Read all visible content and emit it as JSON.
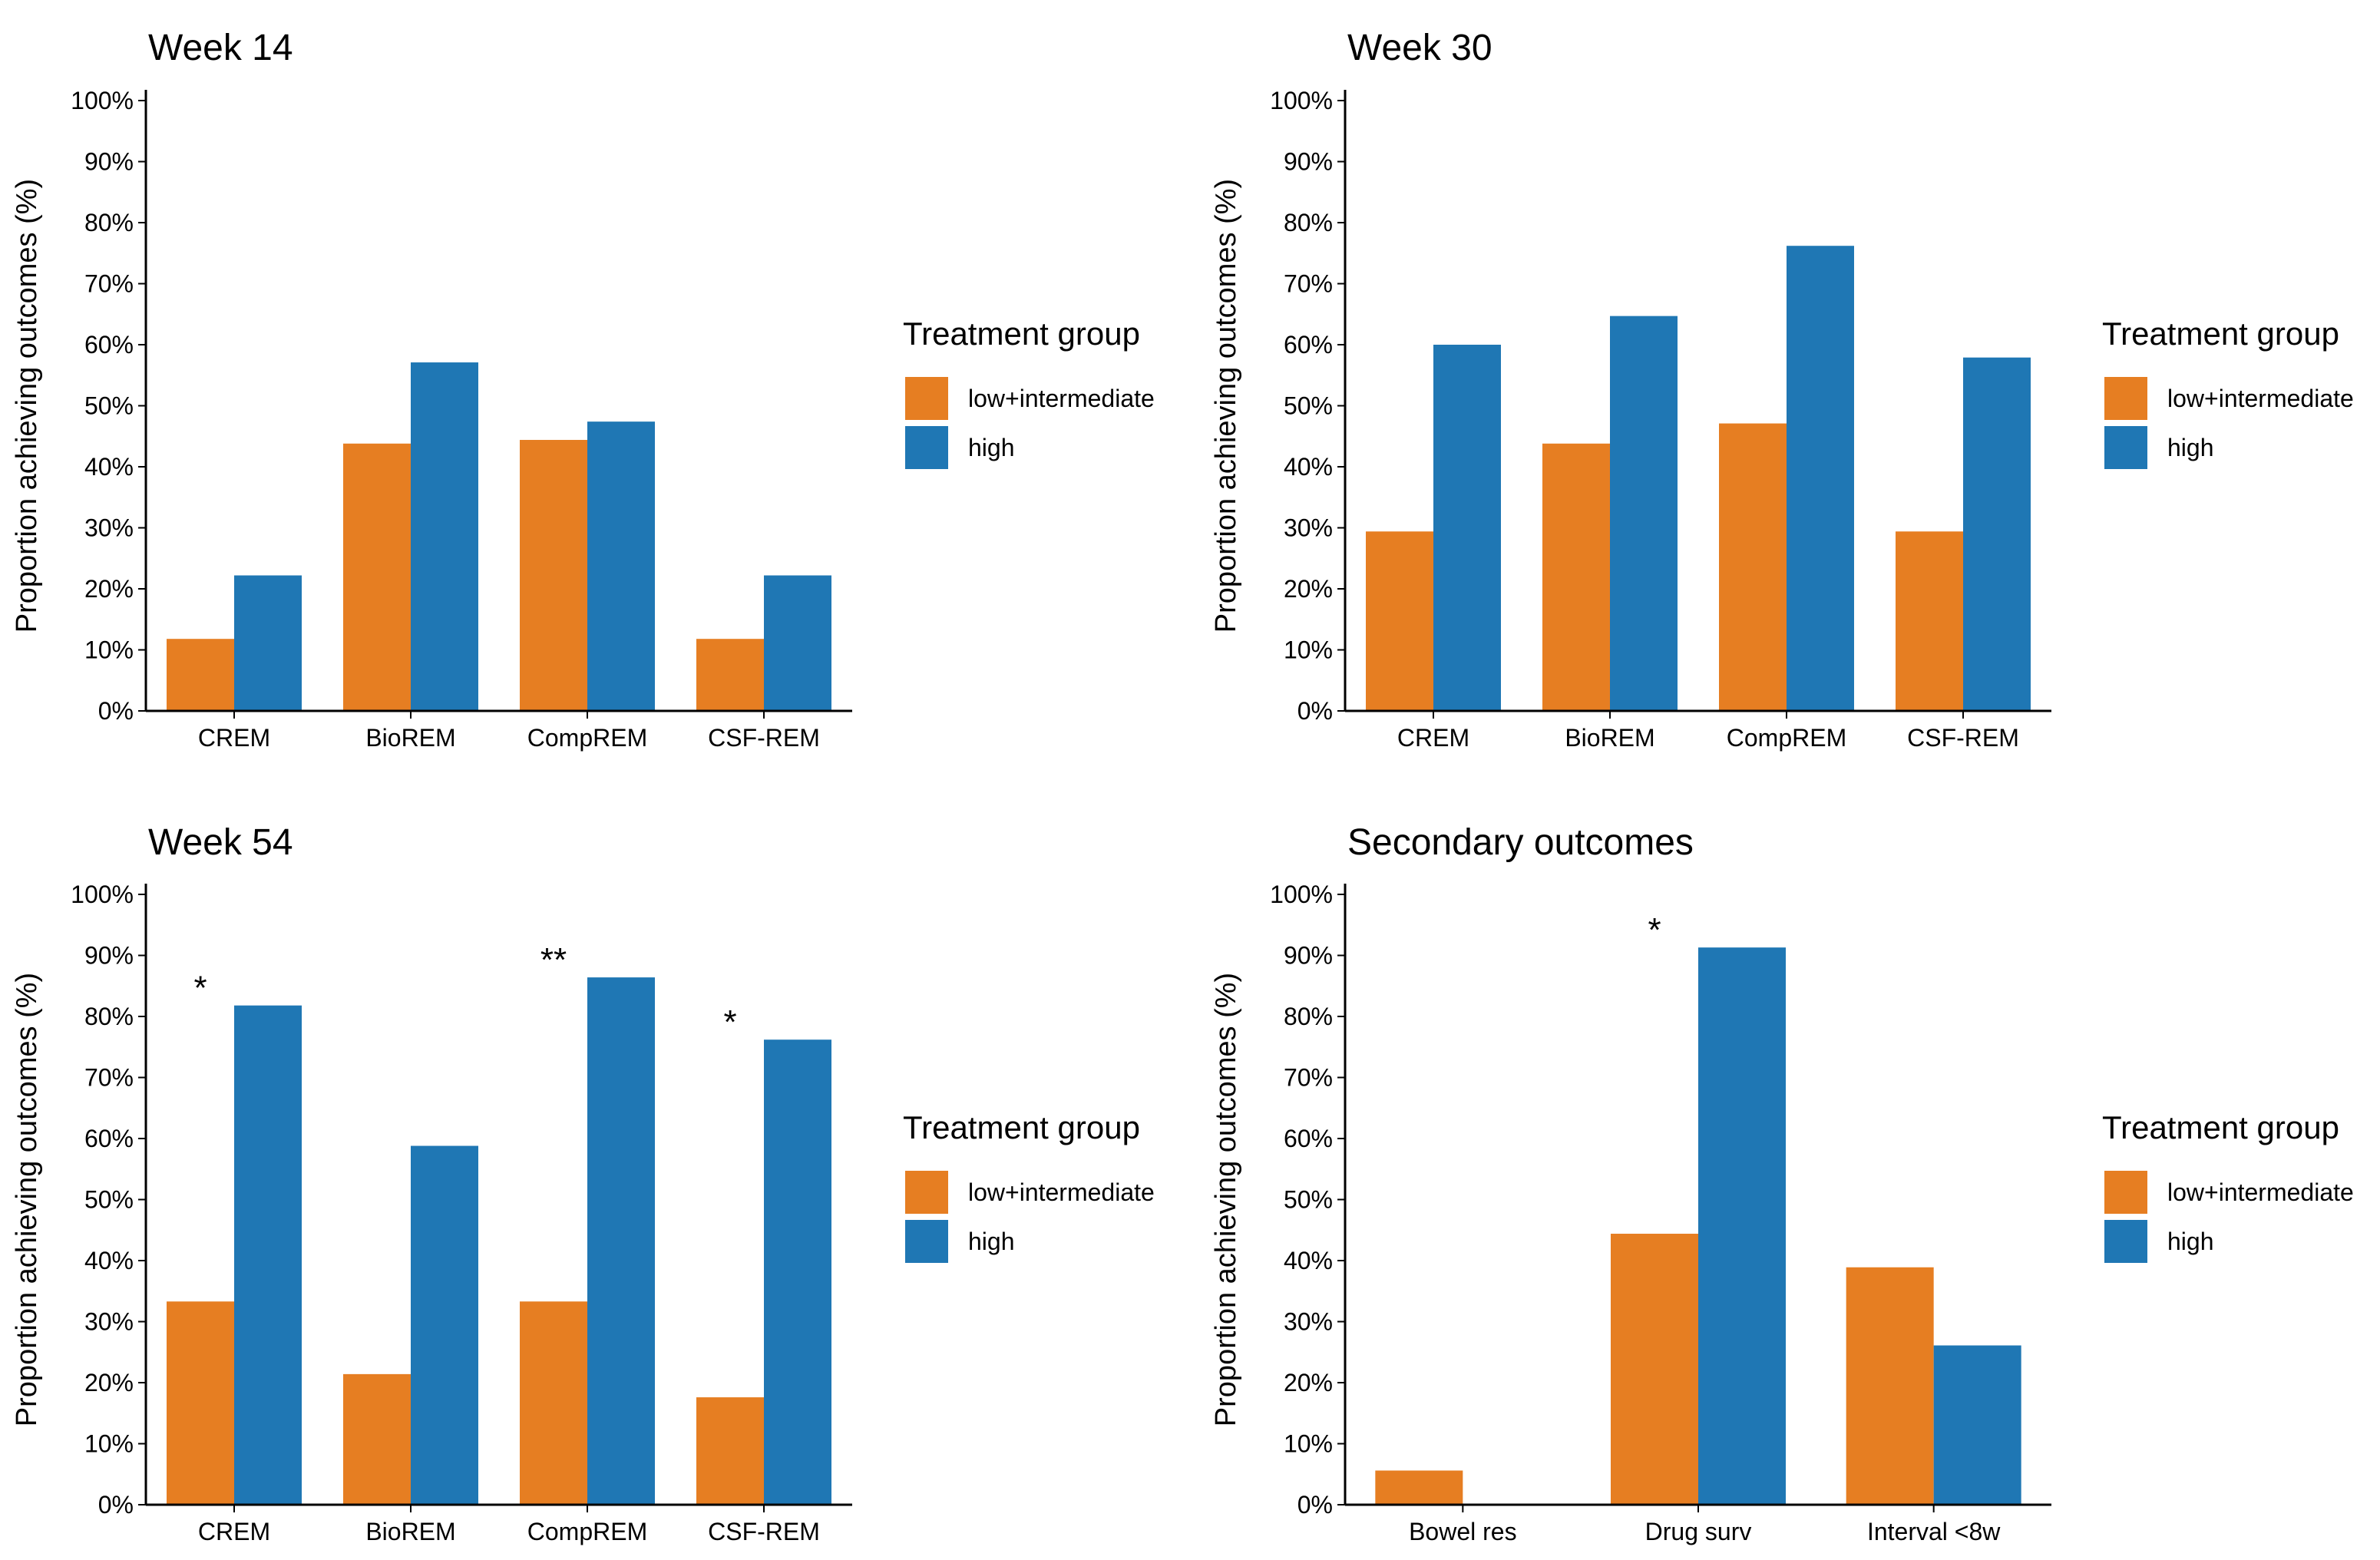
{
  "colors": {
    "low_intermediate": "#E67E22",
    "high": "#1F77B4",
    "axis": "#000000"
  },
  "legend": {
    "title": "Treatment group",
    "entries": [
      {
        "key": "low_intermediate",
        "label": "low+intermediate"
      },
      {
        "key": "high",
        "label": "high"
      }
    ]
  },
  "chart_data": [
    {
      "type": "bar",
      "title": "Week 14",
      "ylabel": "Proportion achieving outcomes (%)",
      "ylim": [
        0,
        100
      ],
      "yticks": [
        "0%",
        "10%",
        "20%",
        "30%",
        "40%",
        "50%",
        "60%",
        "70%",
        "80%",
        "90%",
        "100%"
      ],
      "categories": [
        "CREM",
        "BioREM",
        "CompREM",
        "CSF-REM"
      ],
      "series": [
        {
          "name": "low+intermediate",
          "key": "low_intermediate",
          "values": [
            11.8,
            43.8,
            44.4,
            11.8
          ]
        },
        {
          "name": "high",
          "key": "high",
          "values": [
            22.2,
            57.1,
            47.4,
            22.2
          ]
        }
      ],
      "annotations": [
        "",
        "",
        "",
        ""
      ],
      "legend_position": "right"
    },
    {
      "type": "bar",
      "title": "Week 30",
      "ylabel": "Proportion achieving outcomes (%)",
      "ylim": [
        0,
        100
      ],
      "yticks": [
        "0%",
        "10%",
        "20%",
        "30%",
        "40%",
        "50%",
        "60%",
        "70%",
        "80%",
        "90%",
        "100%"
      ],
      "categories": [
        "CREM",
        "BioREM",
        "CompREM",
        "CSF-REM"
      ],
      "series": [
        {
          "name": "low+intermediate",
          "key": "low_intermediate",
          "values": [
            29.4,
            43.8,
            47.1,
            29.4
          ]
        },
        {
          "name": "high",
          "key": "high",
          "values": [
            60.0,
            64.7,
            76.2,
            57.9
          ]
        }
      ],
      "annotations": [
        "",
        "",
        "",
        ""
      ],
      "legend_position": "right"
    },
    {
      "type": "bar",
      "title": "Week 54",
      "ylabel": "Proportion achieving outcomes (%)",
      "ylim": [
        0,
        100
      ],
      "yticks": [
        "0%",
        "10%",
        "20%",
        "30%",
        "40%",
        "50%",
        "60%",
        "70%",
        "80%",
        "90%",
        "100%"
      ],
      "categories": [
        "CREM",
        "BioREM",
        "CompREM",
        "CSF-REM"
      ],
      "series": [
        {
          "name": "low+intermediate",
          "key": "low_intermediate",
          "values": [
            33.3,
            21.4,
            33.3,
            17.6
          ]
        },
        {
          "name": "high",
          "key": "high",
          "values": [
            81.8,
            58.8,
            86.4,
            76.2
          ]
        }
      ],
      "annotations": [
        "*",
        "",
        "**",
        "*"
      ],
      "legend_position": "right"
    },
    {
      "type": "bar",
      "title": "Secondary outcomes",
      "ylabel": "Proportion achieving outcomes (%)",
      "ylim": [
        0,
        100
      ],
      "yticks": [
        "0%",
        "10%",
        "20%",
        "30%",
        "40%",
        "50%",
        "60%",
        "70%",
        "80%",
        "90%",
        "100%"
      ],
      "categories": [
        "Bowel res",
        "Drug surv",
        "Interval <8w"
      ],
      "series": [
        {
          "name": "low+intermediate",
          "key": "low_intermediate",
          "values": [
            5.6,
            44.4,
            38.9
          ]
        },
        {
          "name": "high",
          "key": "high",
          "values": [
            0.0,
            91.3,
            26.1
          ]
        }
      ],
      "annotations": [
        "",
        "*",
        ""
      ],
      "legend_position": "right"
    }
  ]
}
